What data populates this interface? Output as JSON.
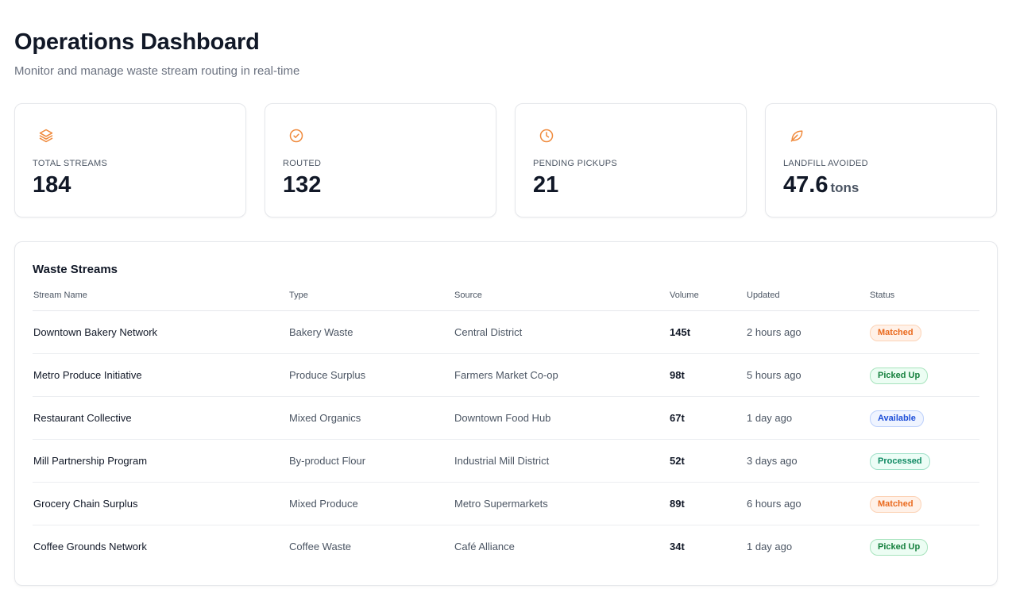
{
  "header": {
    "title": "Operations Dashboard",
    "subtitle": "Monitor and manage waste stream routing in real-time"
  },
  "stats": [
    {
      "label": "TOTAL STREAMS",
      "value": "184",
      "unit": "",
      "icon": "layers-icon"
    },
    {
      "label": "ROUTED",
      "value": "132",
      "unit": "",
      "icon": "check-circle-icon"
    },
    {
      "label": "PENDING PICKUPS",
      "value": "21",
      "unit": "",
      "icon": "clock-icon"
    },
    {
      "label": "LANDFILL AVOIDED",
      "value": "47.6",
      "unit": "tons",
      "icon": "leaf-icon"
    }
  ],
  "colors": {
    "accent": "#f08a3c",
    "matched_bg": "#fff1e8",
    "matched_fg": "#ea6a1e",
    "matched_border": "#fcd3b6",
    "picked_bg": "#ecfdf3",
    "picked_fg": "#15803d",
    "picked_border": "#a7e3bd",
    "available_bg": "#eff4ff",
    "available_fg": "#1d4ed8",
    "available_border": "#bcd0fb",
    "processed_bg": "#ecfdf6",
    "processed_fg": "#0f8a63",
    "processed_border": "#9fe0c8"
  },
  "table": {
    "title": "Waste Streams",
    "columns": [
      "Stream Name",
      "Type",
      "Source",
      "Volume",
      "Updated",
      "Status"
    ],
    "rows": [
      {
        "name": "Downtown Bakery Network",
        "type": "Bakery Waste",
        "source": "Central District",
        "volume": "145t",
        "updated": "2 hours ago",
        "status": "Matched",
        "status_key": "matched"
      },
      {
        "name": "Metro Produce Initiative",
        "type": "Produce Surplus",
        "source": "Farmers Market Co-op",
        "volume": "98t",
        "updated": "5 hours ago",
        "status": "Picked Up",
        "status_key": "picked"
      },
      {
        "name": "Restaurant Collective",
        "type": "Mixed Organics",
        "source": "Downtown Food Hub",
        "volume": "67t",
        "updated": "1 day ago",
        "status": "Available",
        "status_key": "available"
      },
      {
        "name": "Mill Partnership Program",
        "type": "By-product Flour",
        "source": "Industrial Mill District",
        "volume": "52t",
        "updated": "3 days ago",
        "status": "Processed",
        "status_key": "processed"
      },
      {
        "name": "Grocery Chain Surplus",
        "type": "Mixed Produce",
        "source": "Metro Supermarkets",
        "volume": "89t",
        "updated": "6 hours ago",
        "status": "Matched",
        "status_key": "matched"
      },
      {
        "name": "Coffee Grounds Network",
        "type": "Coffee Waste",
        "source": "Café Alliance",
        "volume": "34t",
        "updated": "1 day ago",
        "status": "Picked Up",
        "status_key": "picked"
      }
    ]
  }
}
